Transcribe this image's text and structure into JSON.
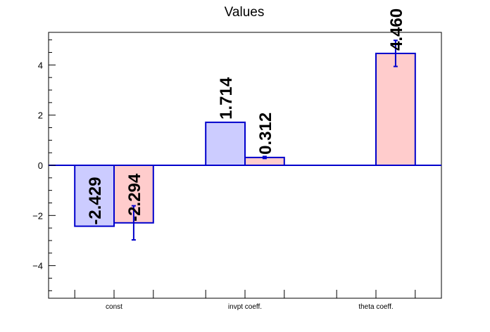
{
  "chart_data": {
    "type": "bar",
    "title": "Values",
    "xlabel": "",
    "ylabel": "",
    "categories": [
      "const",
      "invpt coeff.",
      "theta coeff."
    ],
    "ylim": [
      -5.3,
      5.3
    ],
    "yticks": [
      -4,
      -2,
      0,
      2,
      4
    ],
    "grid": false,
    "series": [
      {
        "color_fill": "#ccccff",
        "color_line": "#0000cc",
        "values": [
          -2.429,
          1.714,
          null
        ],
        "labels": [
          "-2.429",
          "1.714",
          ""
        ],
        "errors": [
          null,
          null,
          null
        ]
      },
      {
        "color_fill": "#ffcccc",
        "color_line": "#0000cc",
        "values": [
          -2.294,
          0.312,
          4.46
        ],
        "labels": [
          "-2.294",
          "0.312",
          "4.460"
        ],
        "errors": [
          0.68,
          0.04,
          0.52
        ]
      }
    ]
  }
}
